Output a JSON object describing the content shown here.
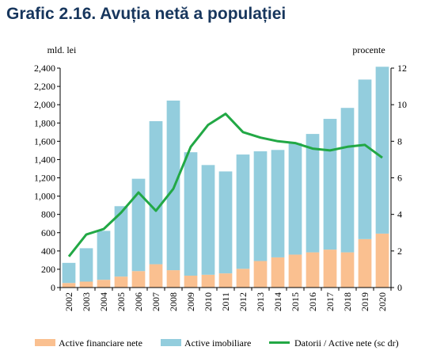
{
  "title": "Grafic 2.16. Avuția netă a populației",
  "chart_data": {
    "type": "bar",
    "stacked": true,
    "categories": [
      "2002",
      "2003",
      "2004",
      "2005",
      "2006",
      "2007",
      "2008",
      "2009",
      "2010",
      "2011",
      "2012",
      "2013",
      "2014",
      "2015",
      "2016",
      "2017",
      "2018",
      "2019",
      "2020"
    ],
    "series": [
      {
        "name": "Active financiare nete",
        "type": "bar",
        "axis": "left",
        "color": "#fac090",
        "values": [
          50,
          65,
          85,
          120,
          180,
          255,
          190,
          130,
          140,
          155,
          205,
          290,
          330,
          360,
          385,
          415,
          385,
          530,
          590
        ]
      },
      {
        "name": "Active imobiliare",
        "type": "bar",
        "axis": "left",
        "color": "#93cddd",
        "values": [
          220,
          365,
          535,
          770,
          1010,
          1565,
          1855,
          1350,
          1200,
          1115,
          1250,
          1200,
          1175,
          1220,
          1295,
          1430,
          1580,
          1745,
          1825
        ]
      },
      {
        "name": "Datorii / Active nete (sc dr)",
        "type": "line",
        "axis": "right",
        "color": "#22a845",
        "values": [
          1.7,
          2.9,
          3.2,
          4.1,
          5.2,
          4.2,
          5.4,
          7.7,
          8.9,
          9.5,
          8.5,
          8.2,
          8.0,
          7.9,
          7.6,
          7.5,
          7.7,
          7.8,
          7.1
        ]
      }
    ],
    "y_left": {
      "label": "mld. lei",
      "min": 0,
      "max": 2400,
      "step": 200,
      "ticks": [
        "0",
        "200",
        "400",
        "600",
        "800",
        "1,000",
        "1,200",
        "1,400",
        "1,600",
        "1,800",
        "2,000",
        "2,200",
        "2,400"
      ]
    },
    "y_right": {
      "label": "procente",
      "min": 0,
      "max": 12,
      "step": 2,
      "ticks": [
        "0",
        "2",
        "4",
        "6",
        "8",
        "10",
        "12"
      ]
    },
    "grid": false,
    "legend_position": "bottom"
  }
}
